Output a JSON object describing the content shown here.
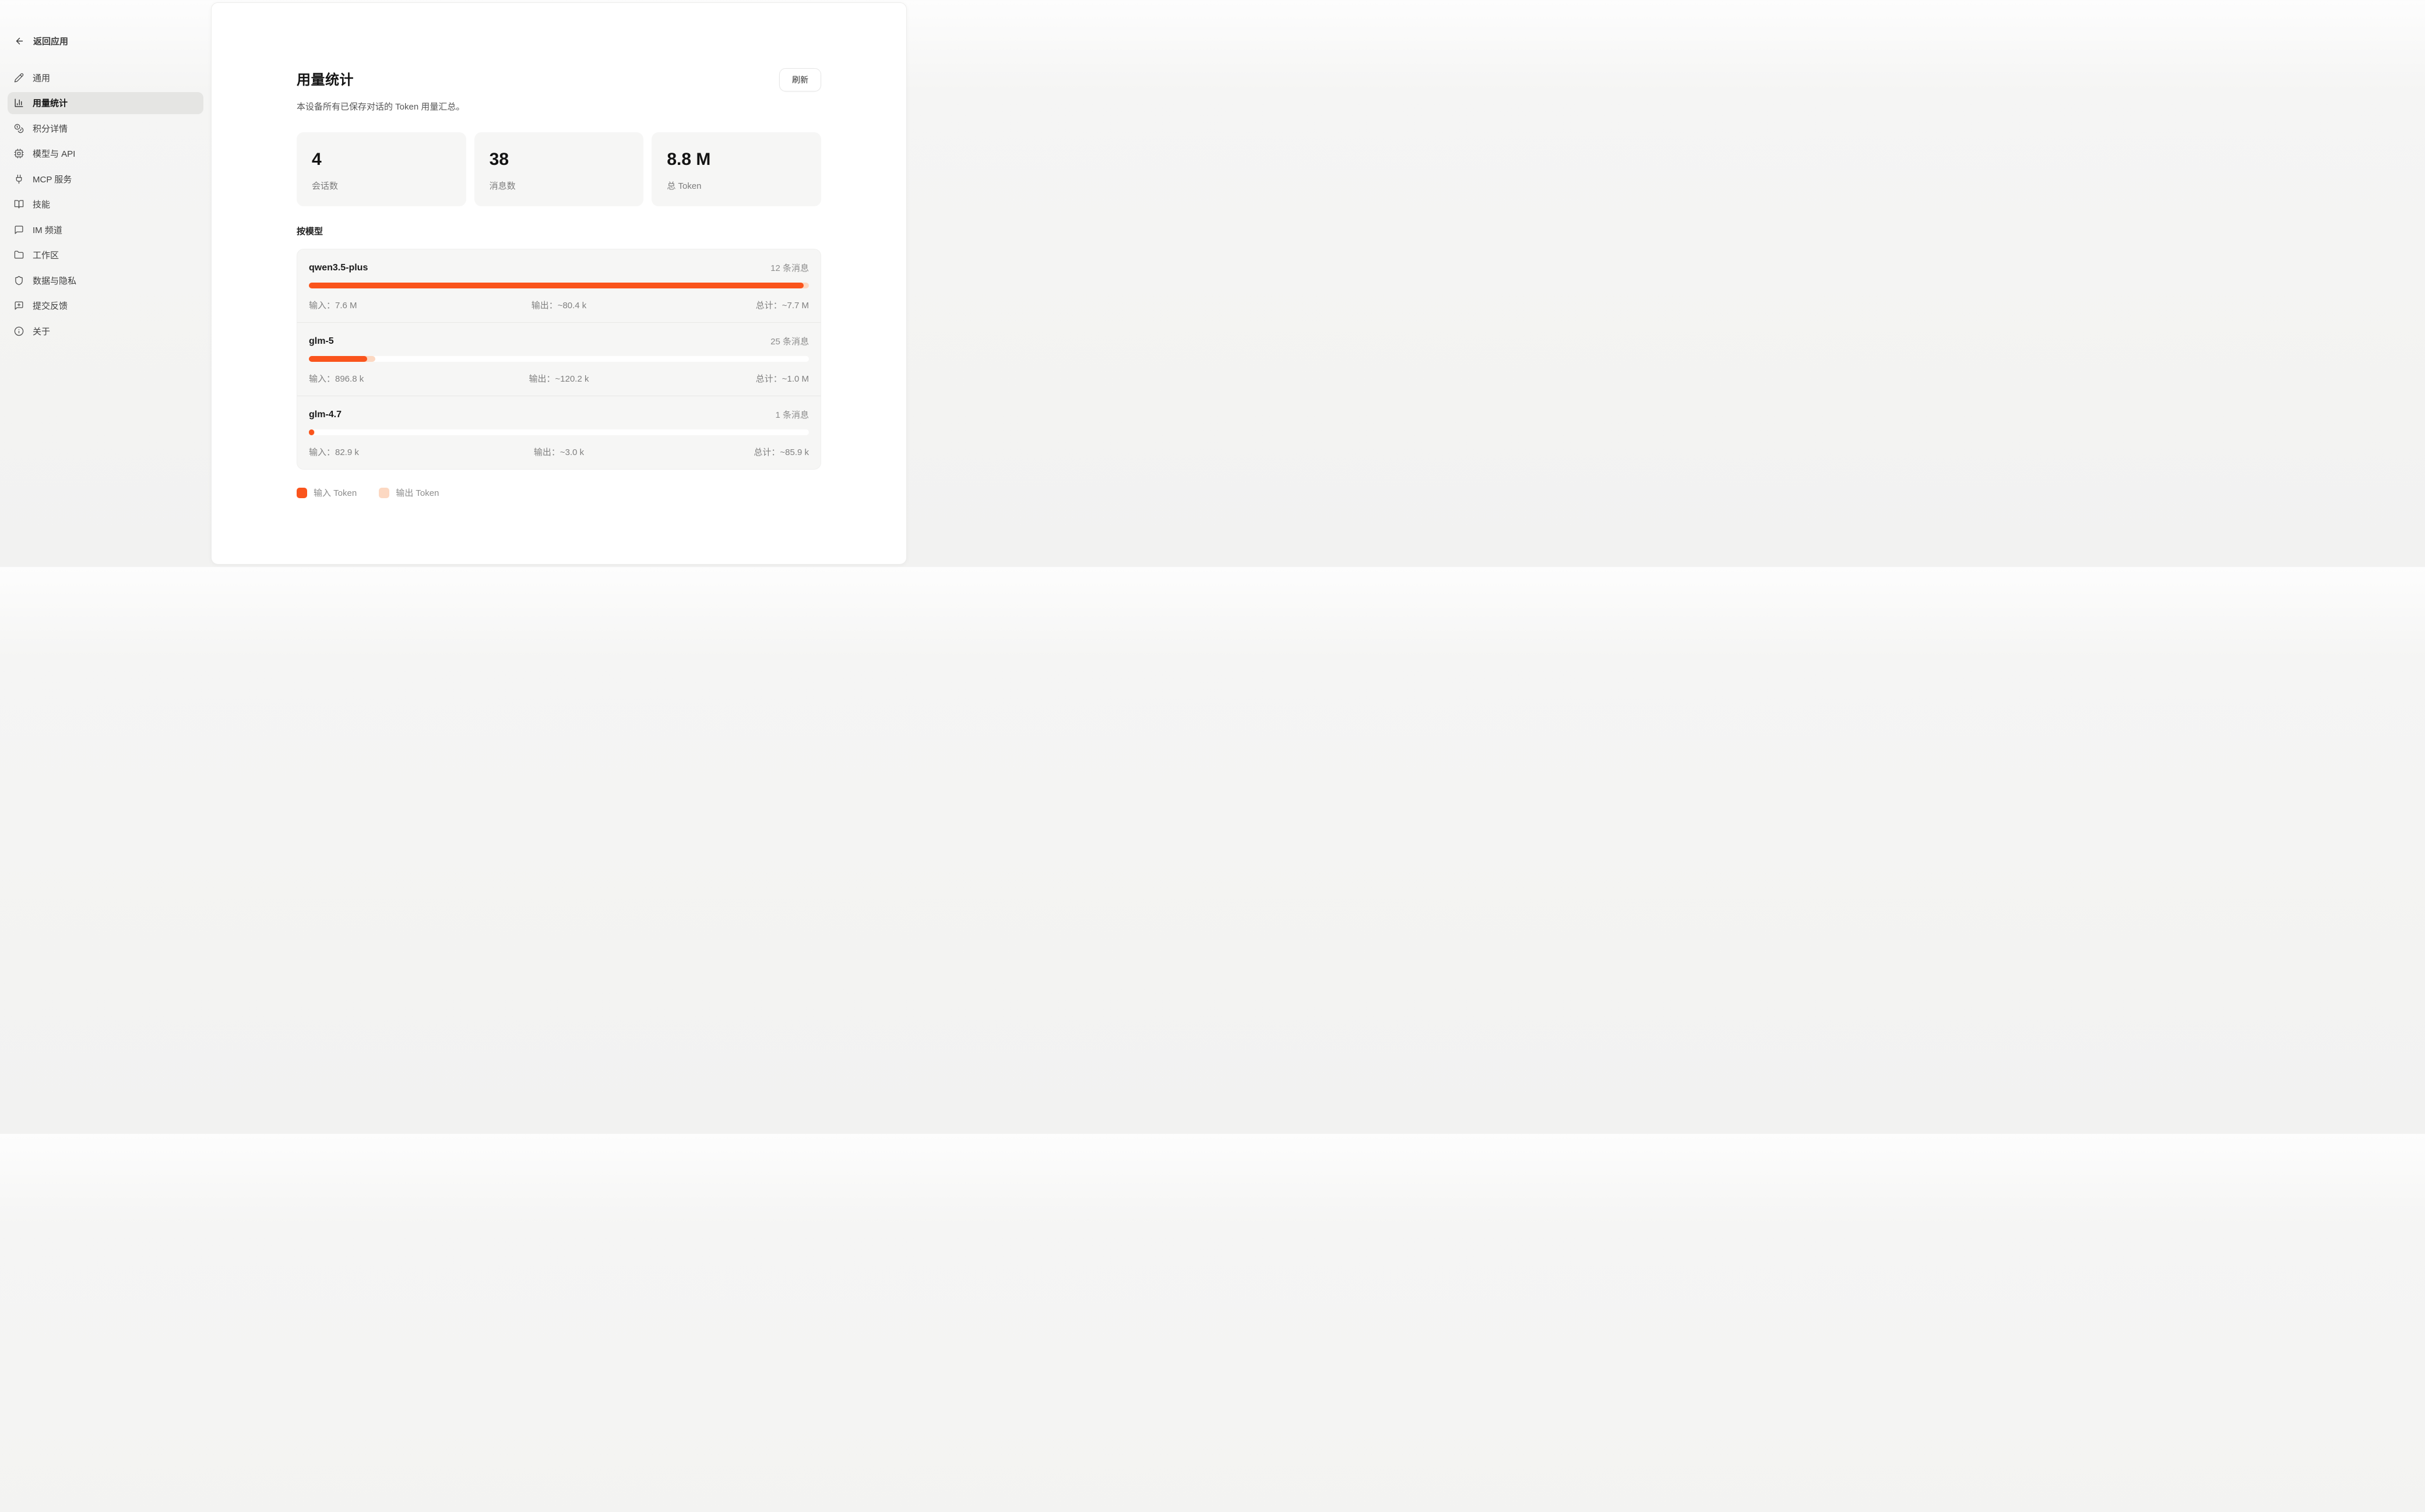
{
  "sidebar": {
    "back_label": "返回应用",
    "items": [
      {
        "label": "通用",
        "icon": "pencil-icon",
        "selected": false
      },
      {
        "label": "用量统计",
        "icon": "bar-chart-icon",
        "selected": true
      },
      {
        "label": "积分详情",
        "icon": "coins-icon",
        "selected": false
      },
      {
        "label": "模型与 API",
        "icon": "chip-icon",
        "selected": false
      },
      {
        "label": "MCP 服务",
        "icon": "plug-icon",
        "selected": false
      },
      {
        "label": "技能",
        "icon": "book-icon",
        "selected": false
      },
      {
        "label": "IM 频道",
        "icon": "chat-icon",
        "selected": false
      },
      {
        "label": "工作区",
        "icon": "folder-icon",
        "selected": false
      },
      {
        "label": "数据与隐私",
        "icon": "shield-icon",
        "selected": false
      },
      {
        "label": "提交反馈",
        "icon": "feedback-icon",
        "selected": false
      },
      {
        "label": "关于",
        "icon": "info-icon",
        "selected": false
      }
    ]
  },
  "main": {
    "title": "用量统计",
    "refresh_label": "刷新",
    "subtitle": "本设备所有已保存对话的 Token 用量汇总。",
    "stats": [
      {
        "value": "4",
        "label": "会话数"
      },
      {
        "value": "38",
        "label": "消息数"
      },
      {
        "value": "8.8 M",
        "label": "总 Token"
      }
    ],
    "by_model_label": "按模型",
    "models": [
      {
        "name": "qwen3.5-plus",
        "messages": "12 条消息",
        "input": "输入：7.6 M",
        "output": "输出：~80.4 k",
        "total": "总计：~7.7 M",
        "input_pct": 98.9,
        "cum_pct": 100
      },
      {
        "name": "glm-5",
        "messages": "25 条消息",
        "input": "输入：896.8 k",
        "output": "输出：~120.2 k",
        "total": "总计：~1.0 M",
        "input_pct": 11.7,
        "cum_pct": 13.3
      },
      {
        "name": "glm-4.7",
        "messages": "1 条消息",
        "input": "输入：82.9 k",
        "output": "输出：~3.0 k",
        "total": "总计：~85.9 k",
        "input_pct": 1.1,
        "cum_pct": 1.2
      }
    ],
    "legend": [
      {
        "label": "输入 Token",
        "color": "#fa541c"
      },
      {
        "label": "输出 Token",
        "color": "#fcd8c2"
      }
    ]
  },
  "colors": {
    "accent_input": "#fa541c",
    "accent_output": "#fcd8c2",
    "selected_nav_bg": "#e5e5e3",
    "card_bg": "#f6f6f5",
    "panel_bg": "#ffffff"
  }
}
